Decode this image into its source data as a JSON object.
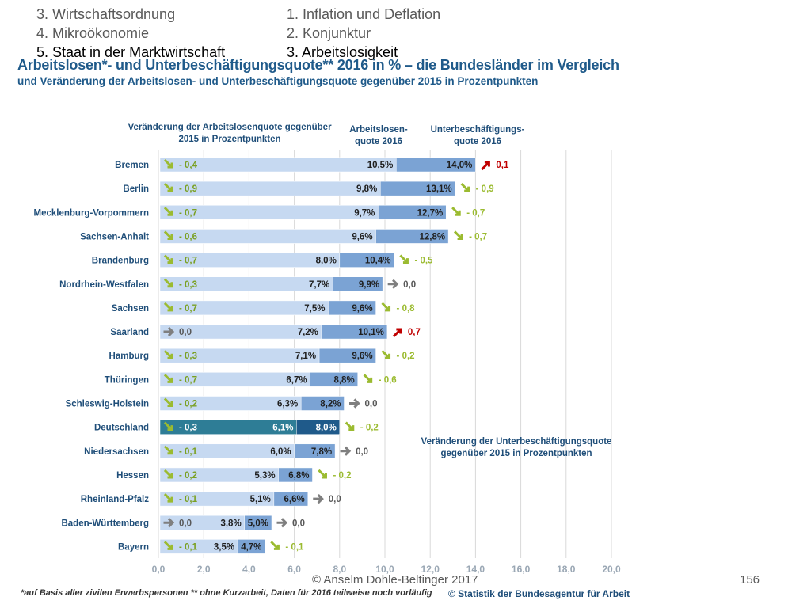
{
  "nav": {
    "left": [
      "3. Wirtschaftsordnung",
      "4. Mikroökonomie",
      "5. Staat in der Marktwirtschaft"
    ],
    "right": [
      "1. Inflation und Deflation",
      "2. Konjunktur",
      "3. Arbeitslosigkeit"
    ]
  },
  "footer": {
    "copyright": "© Anselm Dohle-Beltinger 2017",
    "page_number": "156"
  },
  "chart_data": {
    "type": "bar",
    "title": "Arbeitslosen*- und Unterbeschäftigungsquote** 2016 in % – die Bundesländer im Vergleich",
    "subtitle": "und Veränderung der Arbeitslosen- und Unterbeschäftigungsquote gegenüber 2015 in Prozentpunkten",
    "column_headers": {
      "change_alq": "Veränderung der Arbeitslosenquote gegenüber 2015 in Prozentpunkten",
      "alq": "Arbeitslosen- quote 2016",
      "ubq": "Unterbeschäftigungs- quote 2016",
      "change_ubq": "Veränderung der Unterbeschäftigungsquote gegenüber 2015 in Prozentpunkten"
    },
    "categories": [
      "Bremen",
      "Berlin",
      "Mecklenburg-Vorpommern",
      "Sachsen-Anhalt",
      "Brandenburg",
      "Nordrhein-Westfalen",
      "Sachsen",
      "Saarland",
      "Hamburg",
      "Thüringen",
      "Schleswig-Holstein",
      "Deutschland",
      "Niedersachsen",
      "Hessen",
      "Rheinland-Pfalz",
      "Baden-Württemberg",
      "Bayern"
    ],
    "series": [
      {
        "name": "Arbeitslosenquote 2016",
        "values": [
          10.5,
          9.8,
          9.7,
          9.6,
          8.0,
          7.7,
          7.5,
          7.2,
          7.1,
          6.7,
          6.3,
          6.1,
          6.0,
          5.3,
          5.1,
          3.8,
          3.5
        ],
        "labels": [
          "10,5%",
          "9,8%",
          "9,7%",
          "9,6%",
          "8,0%",
          "7,7%",
          "7,5%",
          "7,2%",
          "7,1%",
          "6,7%",
          "6,3%",
          "6,1%",
          "6,0%",
          "5,3%",
          "5,1%",
          "3,8%",
          "3,5%"
        ]
      },
      {
        "name": "Unterbeschäftigungsquote 2016",
        "values": [
          14.0,
          13.1,
          12.7,
          12.8,
          10.4,
          9.9,
          9.6,
          10.1,
          9.6,
          8.8,
          8.2,
          8.0,
          7.8,
          6.8,
          6.6,
          5.0,
          4.7
        ],
        "labels": [
          "14,0%",
          "13,1%",
          "12,7%",
          "12,8%",
          "10,4%",
          "9,9%",
          "9,6%",
          "10,1%",
          "9,6%",
          "8,8%",
          "8,2%",
          "8,0%",
          "7,8%",
          "6,8%",
          "6,6%",
          "5,0%",
          "4,7%"
        ]
      }
    ],
    "change_alq": {
      "values": [
        -0.4,
        -0.9,
        -0.7,
        -0.6,
        -0.7,
        -0.3,
        -0.7,
        0.0,
        -0.3,
        -0.7,
        -0.2,
        -0.3,
        -0.1,
        -0.2,
        -0.1,
        0.0,
        -0.1
      ],
      "labels": [
        "- 0,4",
        "- 0,9",
        "- 0,7",
        "- 0,6",
        "- 0,7",
        "- 0,3",
        "- 0,7",
        "0,0",
        "- 0,3",
        "- 0,7",
        "- 0,2",
        "- 0,3",
        "- 0,1",
        "- 0,2",
        "- 0,1",
        "0,0",
        "- 0,1"
      ]
    },
    "change_ubq": {
      "values": [
        0.1,
        -0.9,
        -0.7,
        -0.7,
        -0.5,
        0.0,
        -0.8,
        0.7,
        -0.2,
        -0.6,
        0.0,
        -0.2,
        0.0,
        -0.2,
        0.0,
        0.0,
        -0.1
      ],
      "labels": [
        "0,1",
        "- 0,9",
        "- 0,7",
        "- 0,7",
        "- 0,5",
        "0,0",
        "- 0,8",
        "0,7",
        "- 0,2",
        "- 0,6",
        "0,0",
        "- 0,2",
        "0,0",
        "- 0,2",
        "0,0",
        "0,0",
        "- 0,1"
      ]
    },
    "highlight_category": "Deutschland",
    "x_ticks": [
      "0,0",
      "2,0",
      "4,0",
      "6,0",
      "8,0",
      "10,0",
      "12,0",
      "14,0",
      "16,0",
      "18,0",
      "20,0"
    ],
    "xlim": [
      0,
      20
    ],
    "colors": {
      "alq_bar": "#c6d9f1",
      "ubq_bar": "#7ba3d4",
      "highlight_alq": "#2e7d96",
      "highlight_ubq": "#1f5a8a",
      "decrease": "#9bbb30",
      "increase": "#c00000",
      "unchanged": "#7f7f7f",
      "category_text": "#1f4e79"
    },
    "footnote": "*auf Basis aller zivilen Erwerbspersonen ** ohne Kurzarbeit, Daten für 2016 teilweise noch vorläufig",
    "source": "© Statistik der Bundesagentur für Arbeit"
  }
}
